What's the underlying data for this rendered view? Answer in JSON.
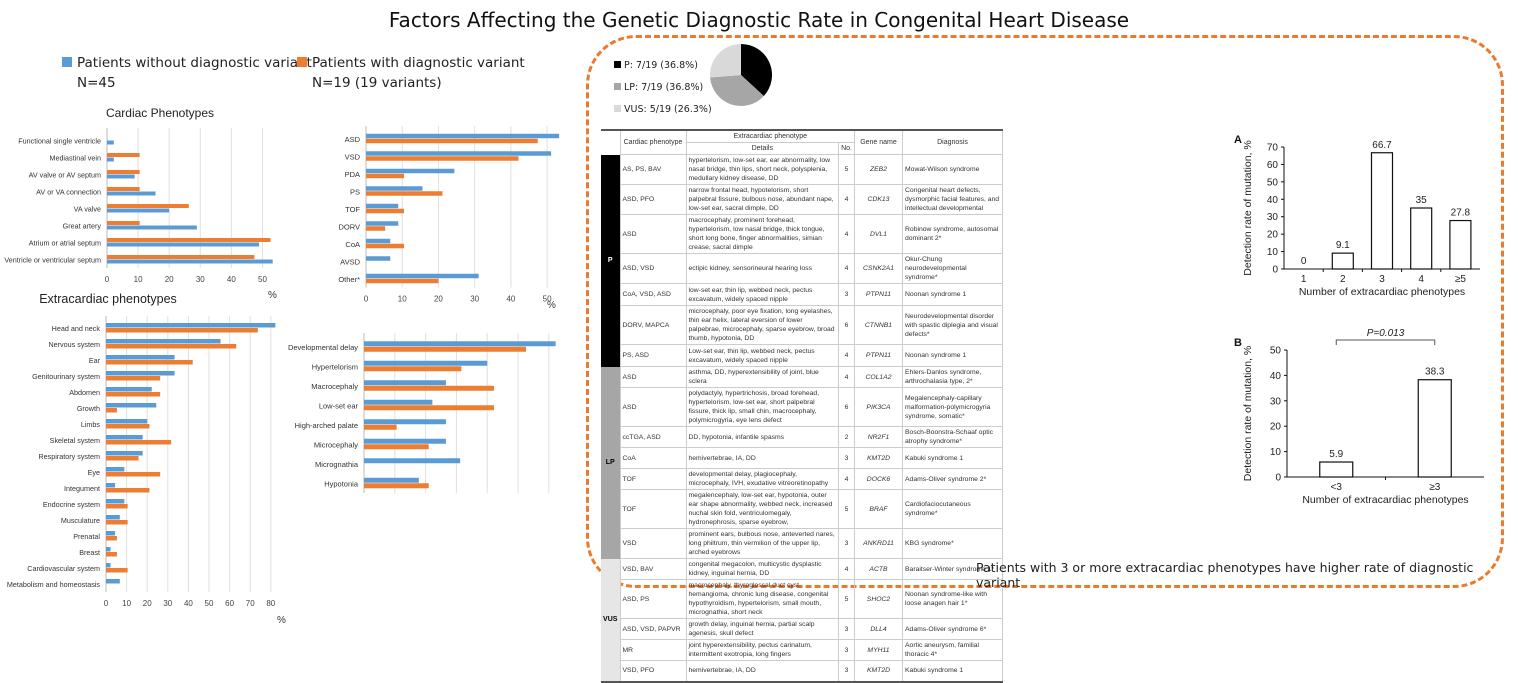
{
  "title": "Factors Affecting the Genetic Diagnostic Rate in Congenital Heart Disease",
  "legend": {
    "without": {
      "label": "Patients without diagnostic variant",
      "n": "N=45",
      "color": "#5b9bd5"
    },
    "with": {
      "label": "Patients with diagnostic variant",
      "n": "N=19 (19 variants)",
      "color": "#ed7d31"
    }
  },
  "pie_legend": [
    {
      "label": "P: 7/19 (36.8%)",
      "color": "#000000"
    },
    {
      "label": "LP: 7/19 (36.8%)",
      "color": "#a6a6a6"
    },
    {
      "label": "VUS: 5/19 (26.3%)",
      "color": "#d9d9d9"
    }
  ],
  "table": {
    "headers": {
      "cardiac": "Cardiac phenotype",
      "extracardiac": "Extracardiac phenotype",
      "details": "Details",
      "no": "No.",
      "gene": "Gene name",
      "diagnosis": "Diagnosis"
    },
    "groups": [
      {
        "label": "P",
        "cls": "clsP",
        "rows": [
          {
            "cardiac": "AS, PS, BAV",
            "details": "hypertelorism, low-set ear, ear abnormality, low nasal bridge, thin lips, short neck, polysplenia, medullary kidney disease, DD",
            "no": "5",
            "gene": "ZEB2",
            "diagnosis": "Mowat-Wilson syndrome"
          },
          {
            "cardiac": "ASD, PFO",
            "details": "narrow frontal head, hypotelorism, short palpebral fissure, bulbous nose, abundant nape, low-set ear, sacral dimple, DD",
            "no": "4",
            "gene": "CDK13",
            "diagnosis": "Congenital heart defects, dysmorphic facial features, and intellectual developmental"
          },
          {
            "cardiac": "ASD",
            "details": "macrocephaly, prominent forehead, hypertelorism, low nasal bridge, thick tongue, short long bone, finger abnormalities, simian crease, sacral dimple",
            "no": "4",
            "gene": "DVL1",
            "diagnosis": "Robinow syndrome, autosomal dominant 2*"
          },
          {
            "cardiac": "ASD, VSD",
            "details": "ectipic kidney, sensorineural hearing loss",
            "no": "4",
            "gene": "CSNK2A1",
            "diagnosis": "Okur-Chung neurodevelopmental syndrome*"
          },
          {
            "cardiac": "CoA, VSD, ASD",
            "details": "low-set ear, thin lip, webbed neck, pectus excavatum, widely spaced nipple",
            "no": "3",
            "gene": "PTPN11",
            "diagnosis": "Noonan syndrome 1"
          },
          {
            "cardiac": "DORV, MAPCA",
            "details": "microcephaly, poor eye fixation, long eyelashes, thin ear helix, lateral eversion of lower palpebrae, microcephaly, sparse eyebrow, broad thumb, hypotonia, DD",
            "no": "6",
            "gene": "CTNNB1",
            "diagnosis": "Neurodevelopmental disorder with spastic diplegia and visual defects*"
          },
          {
            "cardiac": "PS, ASD",
            "details": "Low-set ear, thin lip, webbed neck, pectus excavatum, widely spaced nipple",
            "no": "4",
            "gene": "PTPN11",
            "diagnosis": "Noonan syndrome 1"
          }
        ]
      },
      {
        "label": "LP",
        "cls": "clsLP",
        "rows": [
          {
            "cardiac": "ASD",
            "details": "asthma, DD, hyperextensibility of joint, blue sclera",
            "no": "4",
            "gene": "COL1A2",
            "diagnosis": "Ehlers-Danlos syndrome, arthrochalasia type, 2*"
          },
          {
            "cardiac": "ASD",
            "details": "polydactyly, hypertrichosis, broad forehead, hypertelorism, low-set ear, short palpebral fissure, thick lip, small chin, macrocephaly, polymicrogyria, eye lens defect",
            "no": "6",
            "gene": "PIK3CA",
            "diagnosis": "Megalencephaly-capillary malformation-polymicrogyria syndrome, somatic*"
          },
          {
            "cardiac": "ccTGA, ASD",
            "details": "DD, hypotonia, infantile spasms",
            "no": "2",
            "gene": "NR2F1",
            "diagnosis": "Bosch-Boonstra-Schaaf optic atrophy syndrome*"
          },
          {
            "cardiac": "CoA",
            "details": "hemivertebrae, IA, DD",
            "no": "3",
            "gene": "KMT2D",
            "diagnosis": "Kabuki syndrome 1"
          },
          {
            "cardiac": "TOF",
            "details": "developmental delay, plagiocephaly, microcephaly, IVH, exudative vitreoretinopathy",
            "no": "4",
            "gene": "DOCK6",
            "diagnosis": "Adams-Oliver syndrome 2*"
          },
          {
            "cardiac": "TOF",
            "details": "megalencephaly, low-set ear, hypotonia, outer ear shape abnormality, webbed neck, increased nuchal skin fold, ventriculomegaly, hydronephrosis, sparse eyebrow,",
            "no": "5",
            "gene": "BRAF",
            "diagnosis": "Cardiofaciocutaneous syndrome*"
          },
          {
            "cardiac": "VSD",
            "details": "prominent ears, bulbous nose, anteverted nares, long philtrum, thin vermilion of the upper lip, arched eyebrows",
            "no": "3",
            "gene": "ANKRD11",
            "diagnosis": "KBG syndrome*"
          }
        ]
      },
      {
        "label": "VUS",
        "cls": "clsVUS",
        "rows": [
          {
            "cardiac": "VSD, BAV",
            "details": "congenital megacolon, multicystic dysplastic kidney, inguinal hernia, DD",
            "no": "4",
            "gene": "ACTB",
            "diagnosis": "Baraitser-Winter syndrome 1*"
          },
          {
            "cardiac": "ASD, PS",
            "details": "macrocephaly, thyroglossal duct cyst, hemangioma, chronic lung disease, congenital hypothyroidism, hypertelorism, small mouth, micrognathia, short neck",
            "no": "5",
            "gene": "SHOC2",
            "diagnosis": "Noonan syndrome-like with loose anagen hair 1*"
          },
          {
            "cardiac": "ASD, VSD, PAPVR",
            "details": "growth delay, inguinal hernia, partial scalp agenesis, skull defect",
            "no": "3",
            "gene": "DLL4",
            "diagnosis": "Adams-Oliver syndrome 6*"
          },
          {
            "cardiac": "MR",
            "details": "joint hyperextensibility, pectus carinatum, intermittent exotropia, long fingers",
            "no": "3",
            "gene": "MYH11",
            "diagnosis": "Aortic aneurysm, familial thoracic 4*"
          },
          {
            "cardiac": "VSD, PFO",
            "details": "hemivertebrae, IA, DD",
            "no": "3",
            "gene": "KMT2D",
            "diagnosis": "Kabuki syndrome 1"
          }
        ]
      }
    ]
  },
  "footer": "Patients with 3 or more extracardiac phenotypes have higher rate of diagnostic variant",
  "chart_data": [
    {
      "id": "cardiac-phenotypes",
      "type": "bar",
      "orientation": "horizontal",
      "title": "Cardiac Phenotypes",
      "xlabel": "%",
      "xlim": [
        0,
        55
      ],
      "ticks": [
        0,
        10,
        20,
        30,
        40,
        50
      ],
      "categories": [
        "Functional single ventricle",
        "Mediastinal vein",
        "AV valve or AV septum",
        "AV or VA connection",
        "VA valve",
        "Great artery",
        "Atrium or atrial septum",
        "Ventricle or ventricular septum"
      ],
      "series": [
        {
          "name": "Patients with diagnostic variant",
          "color": "#ed7d31",
          "values": [
            0,
            10.5,
            10.5,
            10.5,
            26.3,
            10.5,
            52.6,
            47.4
          ]
        },
        {
          "name": "Patients without diagnostic variant",
          "color": "#5b9bd5",
          "values": [
            2.2,
            2.2,
            8.9,
            15.6,
            20.0,
            28.9,
            48.9,
            53.3
          ]
        }
      ],
      "grid": true
    },
    {
      "id": "cardiac-subtypes",
      "type": "bar",
      "orientation": "horizontal",
      "title": "",
      "xlabel": "%",
      "xlim": [
        0,
        53
      ],
      "ticks": [
        0,
        10,
        20,
        30,
        40,
        50
      ],
      "categories": [
        "ASD",
        "VSD",
        "PDA",
        "PS",
        "TOF",
        "DORV",
        "CoA",
        "AVSD",
        "Other*"
      ],
      "series": [
        {
          "name": "Patients without diagnostic variant",
          "color": "#5b9bd5",
          "values": [
            53.3,
            51.1,
            24.4,
            15.6,
            8.9,
            8.9,
            6.7,
            6.7,
            31.1
          ]
        },
        {
          "name": "Patients with diagnostic variant",
          "color": "#ed7d31",
          "values": [
            47.4,
            42.1,
            10.5,
            21.1,
            10.5,
            5.3,
            10.5,
            0,
            20.0
          ]
        }
      ],
      "grid": true
    },
    {
      "id": "extracardiac-phenotypes",
      "type": "bar",
      "orientation": "horizontal",
      "title": "Extracardiac phenotypes",
      "xlabel": "%",
      "xlim": [
        0,
        83
      ],
      "ticks": [
        0,
        10,
        20,
        30,
        40,
        50,
        60,
        70,
        80
      ],
      "categories": [
        "Head and neck",
        "Nervous system",
        "Ear",
        "Genitourinary system",
        "Abdomen",
        "Growth",
        "Limbs",
        "Skeletal system",
        "Respiratory system",
        "Eye",
        "Integument",
        "Endocrine system",
        "Musculature",
        "Prenatal",
        "Breast",
        "Cardiovascular system",
        "Metabolism and homeostasis"
      ],
      "series": [
        {
          "name": "Patients without diagnostic variant",
          "color": "#5b9bd5",
          "values": [
            82.2,
            55.6,
            33.3,
            33.3,
            22.2,
            24.4,
            20.0,
            17.8,
            17.8,
            8.9,
            4.4,
            8.9,
            6.7,
            4.4,
            2.2,
            2.2,
            6.7
          ]
        },
        {
          "name": "Patients with diagnostic variant",
          "color": "#ed7d31",
          "values": [
            73.7,
            63.2,
            42.1,
            26.3,
            26.3,
            5.3,
            21.1,
            31.6,
            15.8,
            26.3,
            21.1,
            10.5,
            10.5,
            5.3,
            5.3,
            10.5,
            0
          ]
        }
      ],
      "grid": true
    },
    {
      "id": "extracardiac-subtypes",
      "type": "bar",
      "orientation": "horizontal",
      "title": "",
      "xlabel": "%",
      "xlim": [
        0,
        31
      ],
      "ticks": [
        0,
        5,
        10,
        15,
        20,
        25,
        30
      ],
      "categories": [
        "Developmental delay",
        "Hypertelorism",
        "Macrocephaly",
        "Low-set ear",
        "High-arched palate",
        "Microcephaly",
        "Micrognathia",
        "Hypotonia"
      ],
      "series": [
        {
          "name": "Patients without diagnostic variant",
          "color": "#5b9bd5",
          "values": [
            31.1,
            20.0,
            13.3,
            11.1,
            13.3,
            13.3,
            15.6,
            8.9
          ]
        },
        {
          "name": "Patients with diagnostic variant",
          "color": "#ed7d31",
          "values": [
            26.3,
            15.8,
            21.1,
            21.1,
            5.3,
            10.5,
            0,
            10.5
          ]
        }
      ],
      "grid": true
    },
    {
      "id": "pie-variant-class",
      "type": "pie",
      "categories": [
        "P",
        "LP",
        "VUS"
      ],
      "values": [
        7,
        7,
        5
      ],
      "colors": [
        "#000000",
        "#a6a6a6",
        "#d9d9d9"
      ]
    },
    {
      "id": "panel-a",
      "type": "bar",
      "panel_label": "A",
      "categories": [
        "1",
        "2",
        "3",
        "4",
        "≥5"
      ],
      "values": [
        0,
        9.1,
        66.7,
        35,
        27.8
      ],
      "data_labels": [
        "0",
        "9.1",
        "66.7",
        "35",
        "27.8"
      ],
      "xlabel": "Number of extracardiac phenotypes",
      "ylabel": "Detection rate of mutation, %",
      "ylim": [
        0,
        70
      ],
      "ticks": [
        0,
        10,
        20,
        30,
        40,
        50,
        60,
        70
      ]
    },
    {
      "id": "panel-b",
      "type": "bar",
      "panel_label": "B",
      "categories": [
        "<3",
        "≥3"
      ],
      "values": [
        5.9,
        38.3
      ],
      "data_labels": [
        "5.9",
        "38.3"
      ],
      "xlabel": "Number of extracardiac phenotypes",
      "ylabel": "Detection rate of mutation, %",
      "ylim": [
        0,
        50
      ],
      "ticks": [
        0,
        10,
        20,
        30,
        40,
        50
      ],
      "annotation": "P=0.013"
    }
  ]
}
